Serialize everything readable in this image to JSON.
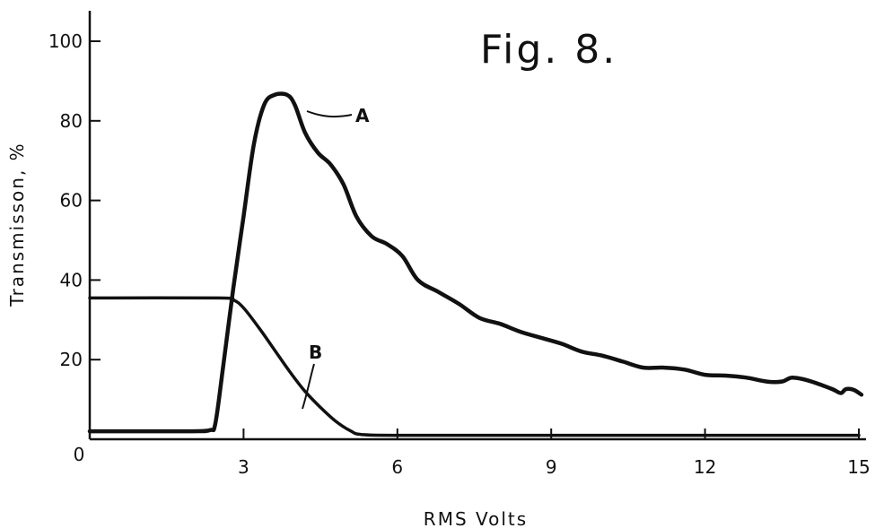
{
  "chart_data": {
    "type": "line",
    "title": "Fig. 8.",
    "xlabel": "RMS Volts",
    "ylabel": "Transmisson, %",
    "xlim": [
      0,
      15
    ],
    "ylim": [
      0,
      100
    ],
    "x_ticks": [
      {
        "value": 0,
        "label": "0"
      },
      {
        "value": 3,
        "label": "3"
      },
      {
        "value": 6,
        "label": "6"
      },
      {
        "value": 9,
        "label": "9"
      },
      {
        "value": 12,
        "label": "12"
      },
      {
        "value": 15,
        "label": "15"
      }
    ],
    "y_ticks": [
      {
        "value": 20,
        "label": "20"
      },
      {
        "value": 40,
        "label": "40"
      },
      {
        "value": 60,
        "label": "60"
      },
      {
        "value": 80,
        "label": "80"
      },
      {
        "value": 100,
        "label": "100"
      }
    ],
    "grid": false,
    "series": [
      {
        "name": "A",
        "points": [
          [
            0,
            2
          ],
          [
            1,
            2
          ],
          [
            2,
            2
          ],
          [
            2.35,
            2.3
          ],
          [
            2.45,
            4
          ],
          [
            2.6,
            18
          ],
          [
            2.8,
            38
          ],
          [
            3.0,
            56
          ],
          [
            3.2,
            74
          ],
          [
            3.4,
            84
          ],
          [
            3.6,
            86.5
          ],
          [
            3.85,
            86.5
          ],
          [
            4.0,
            84
          ],
          [
            4.2,
            77
          ],
          [
            4.45,
            72
          ],
          [
            4.7,
            69
          ],
          [
            4.95,
            64
          ],
          [
            5.2,
            56
          ],
          [
            5.5,
            51
          ],
          [
            5.8,
            49
          ],
          [
            6.1,
            46
          ],
          [
            6.4,
            40
          ],
          [
            6.8,
            37
          ],
          [
            7.2,
            34
          ],
          [
            7.6,
            30.5
          ],
          [
            8.0,
            29
          ],
          [
            8.4,
            27
          ],
          [
            8.8,
            25.5
          ],
          [
            9.2,
            24
          ],
          [
            9.6,
            22
          ],
          [
            10.0,
            21
          ],
          [
            10.4,
            19.5
          ],
          [
            10.8,
            18
          ],
          [
            11.2,
            18
          ],
          [
            11.6,
            17.5
          ],
          [
            12.0,
            16.2
          ],
          [
            12.4,
            16
          ],
          [
            12.8,
            15.5
          ],
          [
            13.2,
            14.5
          ],
          [
            13.5,
            14.5
          ],
          [
            13.7,
            15.5
          ],
          [
            14.0,
            14.8
          ],
          [
            14.3,
            13.5
          ],
          [
            14.5,
            12.5
          ],
          [
            14.65,
            11.6
          ],
          [
            14.75,
            12.6
          ],
          [
            14.9,
            12.4
          ],
          [
            15.05,
            11.2
          ]
        ]
      },
      {
        "name": "B",
        "points": [
          [
            0,
            35.5
          ],
          [
            2.5,
            35.5
          ],
          [
            2.8,
            35
          ],
          [
            3.0,
            33
          ],
          [
            3.3,
            28
          ],
          [
            3.6,
            22.5
          ],
          [
            3.9,
            17
          ],
          [
            4.2,
            12
          ],
          [
            4.5,
            8
          ],
          [
            4.8,
            4.5
          ],
          [
            5.1,
            2
          ],
          [
            5.3,
            1.2
          ],
          [
            6,
            1
          ],
          [
            9,
            1
          ],
          [
            12,
            1
          ],
          [
            15,
            1
          ]
        ]
      }
    ]
  }
}
